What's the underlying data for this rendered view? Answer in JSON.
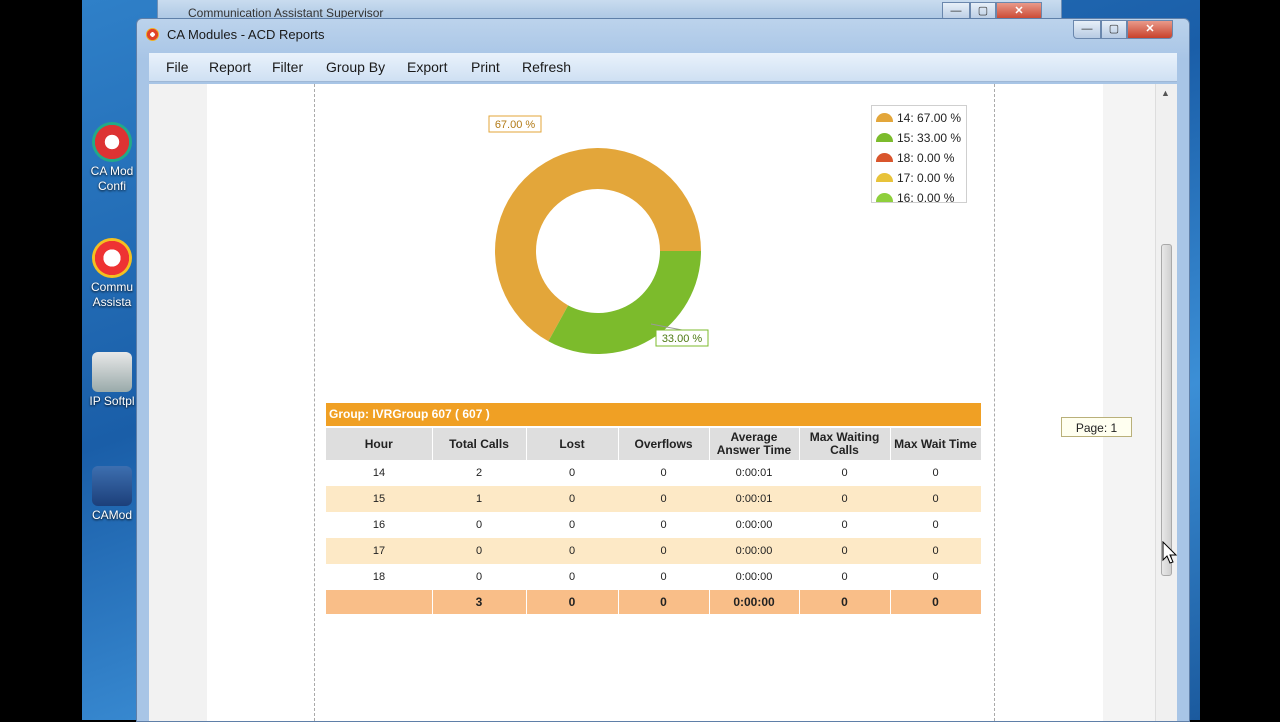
{
  "desktop": {
    "icons": [
      {
        "label": "CA Mod",
        "label2": "Confi"
      },
      {
        "label": "Commu",
        "label2": "Assista"
      },
      {
        "label": "IP Softpl",
        "label2": ""
      },
      {
        "label": "CAMod",
        "label2": ""
      }
    ]
  },
  "back_window": {
    "title": "Communication Assistant Supervisor"
  },
  "window": {
    "title": "CA Modules - ACD Reports",
    "controls": {
      "minimize": "—",
      "maximize": "▢",
      "close": "✕"
    }
  },
  "menu": {
    "items": [
      "File",
      "Report",
      "Filter",
      "Group By",
      "Export",
      "Print",
      "Refresh"
    ]
  },
  "chart_data": {
    "type": "pie",
    "style": "donut",
    "slices": [
      {
        "name": "14",
        "value": 67.0,
        "label": "67.00 %",
        "color": "#e3a63a"
      },
      {
        "name": "15",
        "value": 33.0,
        "label": "33.00 %",
        "color": "#7cbb2c"
      },
      {
        "name": "18",
        "value": 0.0,
        "label": "0.00 %",
        "color": "#d9552c"
      },
      {
        "name": "17",
        "value": 0.0,
        "label": "0.00 %",
        "color": "#e8c33a"
      },
      {
        "name": "16",
        "value": 0.0,
        "label": "0.00 %",
        "color": "#8fcf3c"
      }
    ],
    "legend": [
      "14: 67.00 %",
      "15: 33.00 %",
      "18: 0.00 %",
      "17: 0.00 %",
      "16: 0.00 %"
    ],
    "legend_placement": "top-right"
  },
  "page_indicator": "Page: 1",
  "report": {
    "group_title": "Group: IVRGroup 607 ( 607 )",
    "columns": [
      "Hour",
      "Total Calls",
      "Lost",
      "Overflows",
      "Average Answer Time",
      "Max Waiting Calls",
      "Max Wait Time"
    ],
    "rows": [
      [
        "14",
        "2",
        "0",
        "0",
        "0:00:01",
        "0",
        "0"
      ],
      [
        "15",
        "1",
        "0",
        "0",
        "0:00:01",
        "0",
        "0"
      ],
      [
        "16",
        "0",
        "0",
        "0",
        "0:00:00",
        "0",
        "0"
      ],
      [
        "17",
        "0",
        "0",
        "0",
        "0:00:00",
        "0",
        "0"
      ],
      [
        "18",
        "0",
        "0",
        "0",
        "0:00:00",
        "0",
        "0"
      ]
    ],
    "totals": [
      "",
      "3",
      "0",
      "0",
      "0:00:00",
      "0",
      "0"
    ]
  }
}
